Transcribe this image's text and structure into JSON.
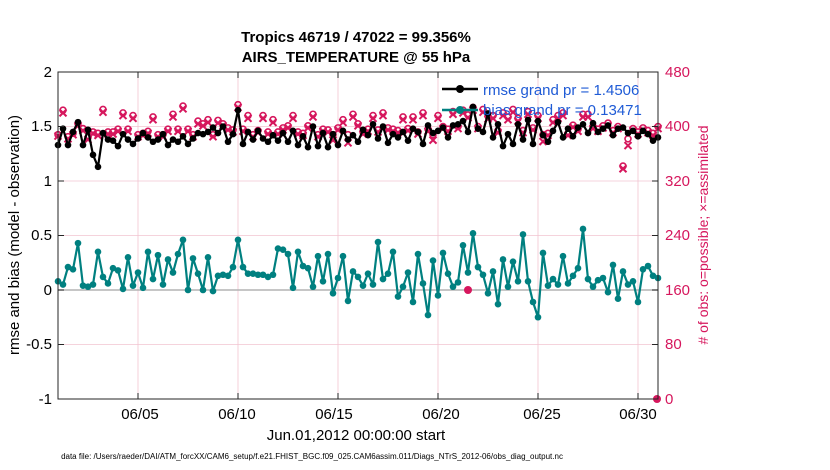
{
  "chart_data": {
    "type": "line",
    "title": "Tropics 46719 / 47022 = 99.356%",
    "subtitle": "AIRS_TEMPERATURE @ 55 hPa",
    "xlabel": "Jun.01,2012 00:00:00 start",
    "ylabel": "rmse and bias (model - observation)",
    "ylabel_right": "# of obs: o=possible; ×=assimilated",
    "footnote": "data file: /Users/raeder/DAI/ATM_forcXX/CAM6_setup/f.e21.FHIST_BGC.f09_025.CAM6assim.011/Diags_NTrS_2012-06/obs_diag_output.nc",
    "x_range_days": [
      1,
      31
    ],
    "ylim": [
      -1,
      2
    ],
    "ylim_right": [
      0,
      480
    ],
    "yticks": [
      "2",
      "1.5",
      "1",
      "0.5",
      "0",
      "-0.5",
      "-1"
    ],
    "yticks_right": [
      "480",
      "400",
      "320",
      "240",
      "160",
      "80",
      "0"
    ],
    "xticks": [
      {
        "day": 5,
        "label": "06/05"
      },
      {
        "day": 10,
        "label": "06/10"
      },
      {
        "day": 15,
        "label": "06/15"
      },
      {
        "day": 20,
        "label": "06/20"
      },
      {
        "day": 25,
        "label": "06/25"
      },
      {
        "day": 30,
        "label": "06/30"
      }
    ],
    "legend": [
      {
        "label": "rmse grand pr = 1.4506",
        "color": "#000000"
      },
      {
        "label": "bias grand pr = 0.13471",
        "color": "#008080"
      }
    ],
    "series": [
      {
        "name": "rmse",
        "color": "#000000",
        "x": [
          1.0,
          1.25,
          1.5,
          1.75,
          2.0,
          2.25,
          2.5,
          2.75,
          3.0,
          3.25,
          3.5,
          3.75,
          4.0,
          4.25,
          4.5,
          4.75,
          5.0,
          5.25,
          5.5,
          5.75,
          6.0,
          6.25,
          6.5,
          6.75,
          7.0,
          7.25,
          7.5,
          7.75,
          8.0,
          8.25,
          8.5,
          8.75,
          9.0,
          9.25,
          9.5,
          9.75,
          10.0,
          10.25,
          10.5,
          10.75,
          11.0,
          11.25,
          11.5,
          11.75,
          12.0,
          12.25,
          12.5,
          12.75,
          13.0,
          13.25,
          13.5,
          13.75,
          14.0,
          14.25,
          14.5,
          14.75,
          15.0,
          15.25,
          15.5,
          15.75,
          16.0,
          16.25,
          16.5,
          16.75,
          17.0,
          17.25,
          17.5,
          17.75,
          18.0,
          18.25,
          18.5,
          18.75,
          19.0,
          19.25,
          19.5,
          19.75,
          20.0,
          20.25,
          20.5,
          20.75,
          21.0,
          21.25,
          21.5,
          21.75,
          22.0,
          22.25,
          22.5,
          22.75,
          23.0,
          23.25,
          23.5,
          23.75,
          24.0,
          24.25,
          24.5,
          24.75,
          25.0,
          25.25,
          25.5,
          25.75,
          26.0,
          26.25,
          26.5,
          26.75,
          27.0,
          27.25,
          27.5,
          27.75,
          28.0,
          28.25,
          28.5,
          28.75,
          29.0,
          29.25,
          29.5,
          29.75,
          30.0,
          30.25,
          30.5,
          30.75,
          31.0
        ],
        "values": [
          1.33,
          1.48,
          1.33,
          1.45,
          1.54,
          1.33,
          1.47,
          1.24,
          1.13,
          1.44,
          1.38,
          1.37,
          1.32,
          1.43,
          1.38,
          1.34,
          1.39,
          1.44,
          1.4,
          1.36,
          1.38,
          1.43,
          1.33,
          1.38,
          1.36,
          1.41,
          1.34,
          1.39,
          1.44,
          1.43,
          1.45,
          1.49,
          1.44,
          1.5,
          1.36,
          1.43,
          1.65,
          1.34,
          1.45,
          1.38,
          1.46,
          1.39,
          1.36,
          1.42,
          1.37,
          1.44,
          1.36,
          1.46,
          1.33,
          1.41,
          1.31,
          1.5,
          1.32,
          1.44,
          1.31,
          1.43,
          1.33,
          1.46,
          1.38,
          1.42,
          1.36,
          1.47,
          1.42,
          1.52,
          1.39,
          1.5,
          1.35,
          1.43,
          1.4,
          1.45,
          1.37,
          1.48,
          1.45,
          1.34,
          1.51,
          1.44,
          1.46,
          1.49,
          1.4,
          1.51,
          1.52,
          1.55,
          1.45,
          1.68,
          1.48,
          1.45,
          1.62,
          1.4,
          1.52,
          1.32,
          1.43,
          1.34,
          1.52,
          1.38,
          1.56,
          1.34,
          1.55,
          1.42,
          1.36,
          1.46,
          1.54,
          1.4,
          1.48,
          1.41,
          1.49,
          1.52,
          1.44,
          1.53,
          1.45,
          1.48,
          1.51,
          1.42,
          1.48,
          1.49,
          1.44,
          1.46,
          1.41,
          1.46,
          1.43,
          1.37,
          1.4
        ]
      },
      {
        "name": "bias",
        "color": "#008080",
        "x": [
          1.0,
          1.25,
          1.5,
          1.75,
          2.0,
          2.25,
          2.5,
          2.75,
          3.0,
          3.25,
          3.5,
          3.75,
          4.0,
          4.25,
          4.5,
          4.75,
          5.0,
          5.25,
          5.5,
          5.75,
          6.0,
          6.25,
          6.5,
          6.75,
          7.0,
          7.25,
          7.5,
          7.75,
          8.0,
          8.25,
          8.5,
          8.75,
          9.0,
          9.25,
          9.5,
          9.75,
          10.0,
          10.25,
          10.5,
          10.75,
          11.0,
          11.25,
          11.5,
          11.75,
          12.0,
          12.25,
          12.5,
          12.75,
          13.0,
          13.25,
          13.5,
          13.75,
          14.0,
          14.25,
          14.5,
          14.75,
          15.0,
          15.25,
          15.5,
          15.75,
          16.0,
          16.25,
          16.5,
          16.75,
          17.0,
          17.25,
          17.5,
          17.75,
          18.0,
          18.25,
          18.5,
          18.75,
          19.0,
          19.25,
          19.5,
          19.75,
          20.0,
          20.25,
          20.5,
          20.75,
          21.0,
          21.25,
          21.5,
          21.75,
          22.0,
          22.25,
          22.5,
          22.75,
          23.0,
          23.25,
          23.5,
          23.75,
          24.0,
          24.25,
          24.5,
          24.75,
          25.0,
          25.25,
          25.5,
          25.75,
          26.0,
          26.25,
          26.5,
          26.75,
          27.0,
          27.25,
          27.5,
          27.75,
          28.0,
          28.25,
          28.5,
          28.75,
          29.0,
          29.25,
          29.5,
          29.75,
          30.0,
          30.25,
          30.5,
          30.75,
          31.0
        ],
        "values": [
          0.08,
          0.05,
          0.21,
          0.19,
          0.43,
          0.04,
          0.03,
          0.05,
          0.35,
          0.12,
          0.06,
          0.2,
          0.18,
          0.01,
          0.3,
          0.04,
          0.16,
          0.02,
          0.35,
          0.1,
          0.32,
          0.05,
          0.28,
          0.16,
          0.33,
          0.46,
          0.0,
          0.29,
          0.15,
          0.0,
          0.3,
          -0.01,
          0.13,
          0.14,
          0.13,
          0.21,
          0.46,
          0.21,
          0.15,
          0.15,
          0.14,
          0.14,
          0.12,
          0.14,
          0.38,
          0.37,
          0.33,
          0.02,
          0.35,
          0.22,
          0.2,
          0.03,
          0.31,
          0.08,
          0.33,
          -0.03,
          0.11,
          0.31,
          -0.1,
          0.17,
          0.12,
          0.04,
          0.15,
          0.05,
          0.44,
          0.1,
          0.15,
          0.35,
          -0.06,
          0.03,
          0.16,
          -0.11,
          0.33,
          0.06,
          -0.23,
          0.27,
          -0.05,
          0.34,
          0.15,
          0.03,
          0.07,
          0.41,
          0.16,
          0.52,
          0.21,
          0.14,
          -0.03,
          0.17,
          -0.13,
          0.28,
          0.03,
          0.26,
          0.08,
          0.51,
          0.08,
          -0.11,
          -0.25,
          0.34,
          0.04,
          0.1,
          0.05,
          0.31,
          0.06,
          0.13,
          0.2,
          0.56,
          0.1,
          0.03,
          0.09,
          0.11,
          -0.02,
          0.23,
          -0.08,
          0.17,
          0.05,
          0.08,
          -0.11,
          0.19,
          0.22,
          0.13,
          0.11
        ]
      },
      {
        "name": "# of obs possible (o)",
        "axis": "right",
        "color": "#d6175d",
        "marker": "o",
        "x": [
          1.0,
          1.25,
          1.5,
          1.75,
          2.0,
          2.25,
          2.5,
          2.75,
          3.0,
          3.25,
          3.5,
          3.75,
          4.0,
          4.25,
          4.5,
          4.75,
          5.0,
          5.25,
          5.5,
          5.75,
          6.0,
          6.25,
          6.5,
          6.75,
          7.0,
          7.25,
          7.5,
          7.75,
          8.0,
          8.25,
          8.5,
          8.75,
          9.0,
          9.25,
          9.5,
          9.75,
          10.0,
          10.25,
          10.5,
          10.75,
          11.0,
          11.25,
          11.5,
          11.75,
          12.0,
          12.25,
          12.5,
          12.75,
          13.0,
          13.25,
          13.5,
          13.75,
          14.0,
          14.25,
          14.5,
          14.75,
          15.0,
          15.25,
          15.5,
          15.75,
          16.0,
          16.25,
          16.5,
          16.75,
          17.0,
          17.25,
          17.5,
          17.75,
          18.0,
          18.25,
          18.5,
          18.75,
          19.0,
          19.25,
          19.5,
          19.75,
          20.0,
          20.25,
          20.5,
          20.75,
          21.0,
          21.25,
          21.5,
          21.75,
          22.0,
          22.25,
          22.5,
          22.75,
          23.0,
          23.25,
          23.5,
          23.75,
          24.0,
          24.25,
          24.5,
          24.75,
          25.0,
          25.25,
          25.5,
          25.75,
          26.0,
          26.25,
          26.5,
          26.75,
          27.0,
          27.25,
          27.5,
          27.75,
          28.0,
          28.25,
          28.5,
          28.75,
          29.0,
          29.25,
          29.5,
          29.75,
          30.0,
          30.25,
          30.5,
          30.75,
          31.0
        ],
        "values": [
          388,
          424,
          385,
          390,
          404,
          397,
          384,
          392,
          390,
          425,
          392,
          392,
          396,
          420,
          396,
          416,
          388,
          390,
          393,
          414,
          388,
          388,
          396,
          418,
          396,
          430,
          396,
          388,
          408,
          404,
          410,
          388,
          409,
          404,
          398,
          395,
          432,
          396,
          416,
          388,
          394,
          416,
          392,
          410,
          392,
          398,
          401,
          416,
          392,
          390,
          401,
          418,
          388,
          396,
          395,
          388,
          398,
          410,
          388,
          418,
          404,
          392,
          396,
          416,
          395,
          420,
          398,
          396,
          394,
          414,
          397,
          414,
          392,
          420,
          396,
          388,
          416,
          400,
          396,
          422,
          400,
          424,
          417,
          428,
          400,
          425,
          415,
          416,
          394,
          420,
          414,
          425,
          412,
          394,
          422,
          398,
          416,
          388,
          390,
          410,
          416,
          420,
          390,
          402,
          396,
          418,
          418,
          400,
          396,
          401,
          405,
          394,
          400,
          342,
          382,
          397,
          392,
          398,
          394,
          390,
          400
        ]
      },
      {
        "name": "# of obs assimilated (×)",
        "axis": "right",
        "color": "#d6175d",
        "marker": "x",
        "x": [
          1.0,
          1.25,
          1.5,
          1.75,
          2.0,
          2.25,
          2.5,
          2.75,
          3.0,
          3.25,
          3.5,
          3.75,
          4.0,
          4.25,
          4.5,
          4.75,
          5.0,
          5.25,
          5.5,
          5.75,
          6.0,
          6.25,
          6.5,
          6.75,
          7.0,
          7.25,
          7.5,
          7.75,
          8.0,
          8.25,
          8.5,
          8.75,
          9.0,
          9.25,
          9.5,
          9.75,
          10.0,
          10.25,
          10.5,
          10.75,
          11.0,
          11.25,
          11.5,
          11.75,
          12.0,
          12.25,
          12.5,
          12.75,
          13.0,
          13.25,
          13.5,
          13.75,
          14.0,
          14.25,
          14.5,
          14.75,
          15.0,
          15.25,
          15.5,
          15.75,
          16.0,
          16.25,
          16.5,
          16.75,
          17.0,
          17.25,
          17.5,
          17.75,
          18.0,
          18.25,
          18.5,
          18.75,
          19.0,
          19.25,
          19.5,
          19.75,
          20.0,
          20.25,
          20.5,
          20.75,
          21.0,
          21.25,
          21.5,
          21.75,
          22.0,
          22.25,
          22.5,
          22.75,
          23.0,
          23.25,
          23.5,
          23.75,
          24.0,
          24.25,
          24.5,
          24.75,
          25.0,
          25.25,
          25.5,
          25.75,
          26.0,
          26.25,
          26.5,
          26.75,
          27.0,
          27.25,
          27.5,
          27.75,
          28.0,
          28.25,
          28.5,
          28.75,
          29.0,
          29.25,
          29.5,
          29.75,
          30.0,
          30.25,
          30.5,
          30.75,
          31.0
        ],
        "values": [
          386,
          420,
          382,
          388,
          401,
          394,
          381,
          390,
          387,
          421,
          389,
          389,
          393,
          416,
          393,
          412,
          385,
          387,
          390,
          410,
          385,
          385,
          393,
          414,
          393,
          426,
          393,
          385,
          404,
          401,
          406,
          385,
          405,
          401,
          395,
          392,
          428,
          393,
          412,
          385,
          391,
          412,
          389,
          406,
          389,
          395,
          398,
          412,
          389,
          387,
          398,
          414,
          385,
          393,
          392,
          380,
          395,
          406,
          376,
          414,
          401,
          389,
          393,
          412,
          392,
          416,
          395,
          393,
          391,
          410,
          394,
          410,
          389,
          416,
          393,
          380,
          412,
          397,
          393,
          418,
          397,
          420,
          413,
          424,
          397,
          421,
          411,
          412,
          391,
          416,
          410,
          421,
          408,
          391,
          418,
          395,
          412,
          378,
          387,
          406,
          412,
          416,
          387,
          399,
          393,
          414,
          414,
          397,
          393,
          398,
          401,
          391,
          397,
          338,
          372,
          394,
          389,
          395,
          391,
          387,
          397
        ]
      }
    ],
    "right_axis_markers": [
      {
        "label": "160",
        "value": 160
      },
      {
        "label": "0",
        "value": 0
      }
    ]
  }
}
